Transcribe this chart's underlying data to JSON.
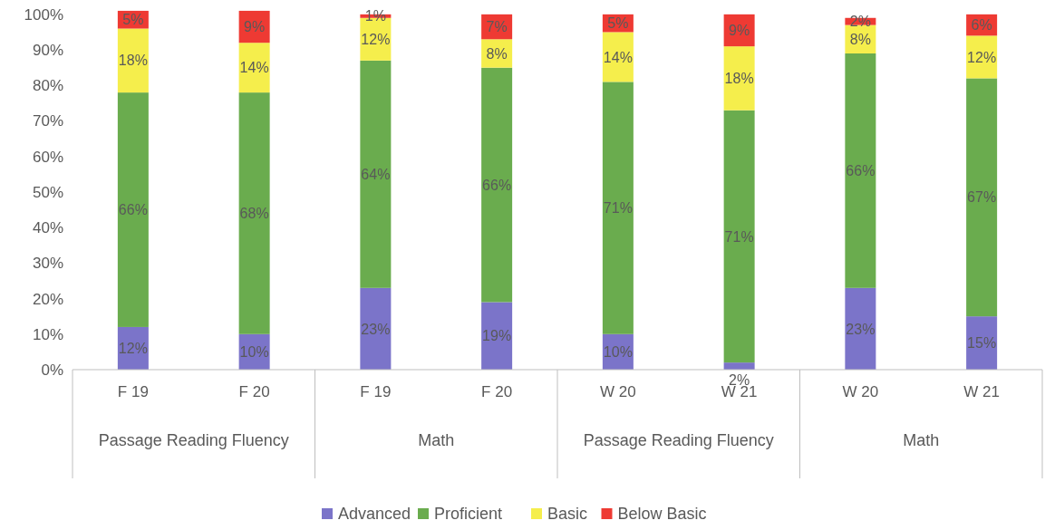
{
  "chart_data": {
    "type": "bar",
    "stacked": true,
    "categories": [
      "F 19",
      "F 20",
      "F 19",
      "F 20",
      "W 20",
      "W 21",
      "W 20",
      "W 21"
    ],
    "series": [
      {
        "name": "Advanced",
        "color": "#7b74c9",
        "values": [
          12,
          10,
          23,
          19,
          10,
          2,
          23,
          15
        ],
        "value_labels": [
          "12%",
          "10%",
          "23%",
          "19%",
          "10%",
          "2%",
          "23%",
          "15%"
        ]
      },
      {
        "name": "Proficient",
        "color": "#6aac4e",
        "values": [
          66,
          68,
          64,
          66,
          71,
          71,
          66,
          67
        ],
        "value_labels": [
          "66%",
          "68%",
          "64%",
          "66%",
          "71%",
          "71%",
          "66%",
          "67%"
        ]
      },
      {
        "name": "Basic",
        "color": "#f5ee4c",
        "values": [
          18,
          14,
          12,
          8,
          14,
          18,
          8,
          12
        ],
        "value_labels": [
          "18%",
          "14%",
          "12%",
          "8%",
          "14%",
          "18%",
          "8%",
          "12%"
        ]
      },
      {
        "name": "Below Basic",
        "color": "#ee3a33",
        "values": [
          5,
          9,
          1,
          7,
          5,
          9,
          2,
          6
        ],
        "value_labels": [
          "5%",
          "9%",
          "1%",
          "7%",
          "5%",
          "9%",
          "2%",
          "6%"
        ]
      }
    ],
    "ylim": [
      0,
      102
    ],
    "yticks": [
      {
        "value": 0,
        "label": "0%"
      },
      {
        "value": 10,
        "label": "10%"
      },
      {
        "value": 20,
        "label": "20%"
      },
      {
        "value": 30,
        "label": "30%"
      },
      {
        "value": 40,
        "label": "40%"
      },
      {
        "value": 50,
        "label": "50%"
      },
      {
        "value": 60,
        "label": "60%"
      },
      {
        "value": 70,
        "label": "70%"
      },
      {
        "value": 80,
        "label": "80%"
      },
      {
        "value": 90,
        "label": "90%"
      },
      {
        "value": 100,
        "label": "100%"
      }
    ],
    "grid": false,
    "legend": "bottom",
    "annotations": [
      "Passage Reading Fluency",
      "Math",
      "Passage Reading Fluency",
      "Math"
    ]
  }
}
